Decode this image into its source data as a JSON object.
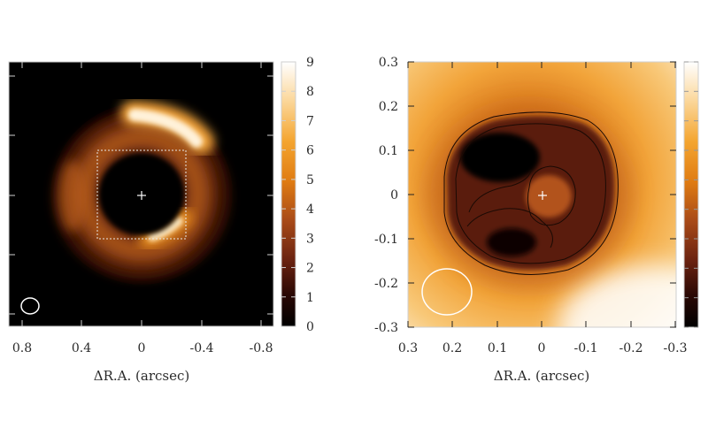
{
  "figure": {
    "left_panel": {
      "x_label": "ΔR.A. (arcsec)",
      "x_ticks": [
        "0.8",
        "0.4",
        "0",
        "-0.4",
        "-0.8"
      ],
      "colorbar_ticks": [
        "0",
        "1",
        "2",
        "3",
        "4",
        "5",
        "6",
        "7",
        "8",
        "9"
      ],
      "colorbar_range": [
        0,
        9
      ],
      "xlim": [
        0.9,
        -0.9
      ]
    },
    "right_panel": {
      "x_label": "ΔR.A. (arcsec)",
      "x_ticks": [
        "0.3",
        "0.2",
        "0.1",
        "0",
        "-0.1",
        "-0.2",
        "-0.3"
      ],
      "y_ticks": [
        "0.3",
        "0.2",
        "0.1",
        "0",
        "-0.1",
        "-0.2",
        "-0.3"
      ],
      "xlim": [
        0.3,
        -0.3
      ],
      "ylim": [
        -0.3,
        0.3
      ]
    },
    "colormap": [
      "#000000",
      "#3a0c04",
      "#7a2a12",
      "#b85a1a",
      "#e88a14",
      "#f6b445",
      "#fbe3b0",
      "#ffffff"
    ]
  }
}
